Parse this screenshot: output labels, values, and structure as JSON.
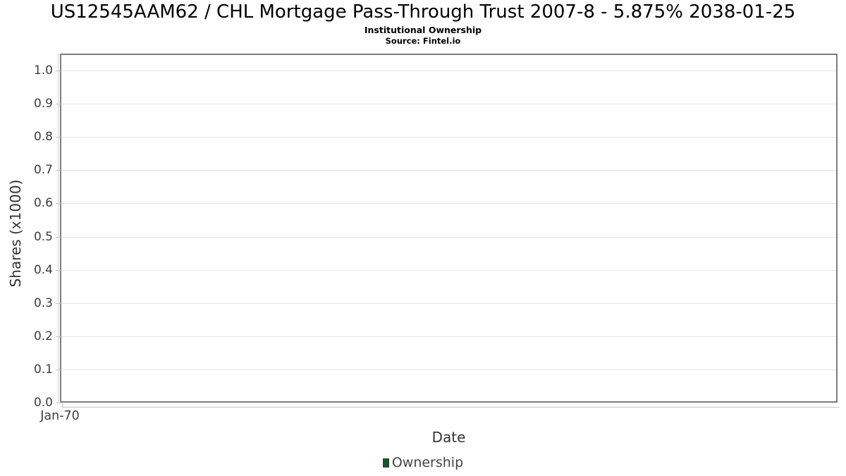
{
  "header": {
    "title": "US12545AAM62 / CHL Mortgage Pass-Through Trust 2007-8 - 5.875% 2038-01-25",
    "subtitle": "Institutional Ownership",
    "source": "Source: Fintel.io"
  },
  "chart_data": {
    "type": "bar",
    "title": "US12545AAM62 / CHL Mortgage Pass-Through Trust 2007-8 - 5.875% 2038-01-25",
    "subtitle": "Institutional Ownership",
    "source": "Source: Fintel.io",
    "xlabel": "Date",
    "ylabel": "Shares (x1000)",
    "x_ticks": [
      "Jan-70"
    ],
    "y_ticks": [
      0.0,
      0.1,
      0.2,
      0.3,
      0.4,
      0.5,
      0.6,
      0.7,
      0.8,
      0.9,
      1.0
    ],
    "ylim": [
      0.0,
      1.05
    ],
    "grid": "horizontal",
    "legend": {
      "position": "bottom-center",
      "entries": [
        {
          "label": "Ownership",
          "color": "#1e502d"
        }
      ]
    },
    "series": [
      {
        "name": "Ownership",
        "x": [],
        "values": []
      }
    ]
  },
  "colors": {
    "legend_marker": "#1e502d",
    "plot_border": "#7d7d7d",
    "gridline": "#e6e6e6"
  }
}
